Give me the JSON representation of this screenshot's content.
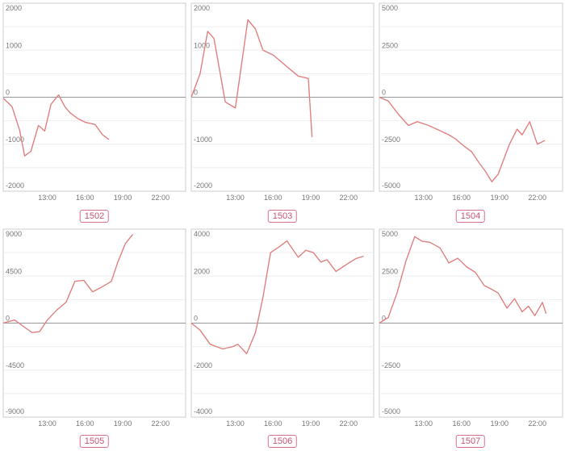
{
  "colors": {
    "line": "#e08080",
    "border": "#cccccc",
    "zero": "#999999",
    "grid": "#eeeeee",
    "badge": "#d9708a"
  },
  "chart_data": [
    {
      "type": "line",
      "label": "1502",
      "ylim": [
        -2000,
        2000
      ],
      "yticks": [
        2000,
        1000,
        0,
        -1000,
        -2000
      ],
      "xticks": [
        "13:00",
        "16:00",
        "19:00",
        "22:00"
      ],
      "xlim": [
        9.5,
        24
      ],
      "grid": true,
      "series": [
        {
          "x": [
            9.5,
            10.2,
            10.8,
            11.2,
            11.7,
            12.3,
            12.8,
            13.3,
            13.9,
            14.4,
            14.8,
            15.4,
            16.0,
            16.8,
            17.4,
            17.9
          ],
          "y": [
            -20,
            -200,
            -700,
            -1250,
            -1150,
            -600,
            -720,
            -150,
            50,
            -200,
            -330,
            -450,
            -530,
            -580,
            -800,
            -900
          ]
        }
      ]
    },
    {
      "type": "line",
      "label": "1503",
      "ylim": [
        -2000,
        2000
      ],
      "yticks": [
        2000,
        1000,
        0,
        -1000,
        -2000
      ],
      "xticks": [
        "13:00",
        "16:00",
        "19:00",
        "22:00"
      ],
      "xlim": [
        9.5,
        24
      ],
      "grid": true,
      "series": [
        {
          "x": [
            9.5,
            10.2,
            10.8,
            11.3,
            12.2,
            13.0,
            14.0,
            14.6,
            15.2,
            16.0,
            18.0,
            18.8,
            19.1
          ],
          "y": [
            0,
            500,
            1400,
            1250,
            -100,
            -230,
            1650,
            1450,
            1000,
            900,
            450,
            400,
            -850
          ]
        }
      ]
    },
    {
      "type": "line",
      "label": "1504",
      "ylim": [
        -5000,
        5000
      ],
      "yticks": [
        5000,
        2500,
        0,
        -2500,
        -5000
      ],
      "xticks": [
        "13:00",
        "16:00",
        "19:00",
        "22:00"
      ],
      "xlim": [
        9.5,
        24
      ],
      "grid": true,
      "series": [
        {
          "x": [
            9.5,
            10.2,
            11.0,
            11.8,
            12.5,
            13.4,
            14.2,
            15.0,
            15.5,
            16.2,
            16.8,
            17.4,
            17.9,
            18.4,
            18.9,
            19.4,
            19.8,
            20.4,
            20.8,
            21.4,
            22.0,
            22.6
          ],
          "y": [
            0,
            -200,
            -900,
            -1500,
            -1300,
            -1500,
            -1750,
            -2000,
            -2200,
            -2600,
            -2900,
            -3500,
            -3950,
            -4500,
            -4100,
            -3200,
            -2500,
            -1700,
            -2000,
            -1300,
            -2500,
            -2300
          ]
        }
      ]
    },
    {
      "type": "line",
      "label": "1505",
      "ylim": [
        -9000,
        9000
      ],
      "yticks": [
        9000,
        4500,
        0,
        -4500,
        -9000
      ],
      "xticks": [
        "13:00",
        "16:00",
        "19:00",
        "22:00"
      ],
      "xlim": [
        9.5,
        24
      ],
      "grid": true,
      "series": [
        {
          "x": [
            9.5,
            10.4,
            11.2,
            11.8,
            12.4,
            13.0,
            13.8,
            14.5,
            15.2,
            15.9,
            16.6,
            17.4,
            18.1,
            18.6,
            19.2,
            19.8
          ],
          "y": [
            0,
            300,
            -400,
            -900,
            -800,
            300,
            1300,
            2000,
            4000,
            4100,
            3000,
            3500,
            4000,
            5800,
            7600,
            8500
          ]
        }
      ]
    },
    {
      "type": "line",
      "label": "1506",
      "ylim": [
        -4000,
        4000
      ],
      "yticks": [
        4000,
        2000,
        0,
        -2000,
        -4000
      ],
      "xticks": [
        "13:00",
        "16:00",
        "19:00",
        "22:00"
      ],
      "xlim": [
        9.5,
        24
      ],
      "grid": true,
      "series": [
        {
          "x": [
            9.5,
            10.2,
            11.0,
            12.0,
            12.8,
            13.2,
            13.9,
            14.6,
            15.2,
            15.8,
            16.5,
            17.1,
            18.0,
            18.6,
            19.2,
            19.8,
            20.3,
            21.0,
            22.0,
            22.6,
            23.2
          ],
          "y": [
            0,
            -300,
            -900,
            -1100,
            -1000,
            -900,
            -1300,
            -400,
            1100,
            3000,
            3250,
            3500,
            2800,
            3100,
            3000,
            2600,
            2700,
            2200,
            2550,
            2750,
            2850
          ]
        }
      ]
    },
    {
      "type": "line",
      "label": "1507",
      "ylim": [
        -5000,
        5000
      ],
      "yticks": [
        5000,
        2500,
        0,
        -2500,
        -5000
      ],
      "xticks": [
        "13:00",
        "16:00",
        "19:00",
        "22:00"
      ],
      "xlim": [
        9.5,
        24
      ],
      "grid": true,
      "series": [
        {
          "x": [
            9.5,
            10.2,
            10.9,
            11.6,
            12.3,
            12.9,
            13.5,
            14.3,
            15.0,
            15.7,
            16.4,
            17.1,
            17.8,
            18.4,
            18.9,
            19.6,
            20.2,
            20.8,
            21.3,
            21.8,
            22.4,
            22.7
          ],
          "y": [
            0,
            300,
            1600,
            3300,
            4600,
            4350,
            4300,
            4000,
            3200,
            3450,
            3000,
            2700,
            2000,
            1800,
            1600,
            800,
            1300,
            600,
            900,
            400,
            1100,
            500
          ]
        }
      ]
    }
  ]
}
